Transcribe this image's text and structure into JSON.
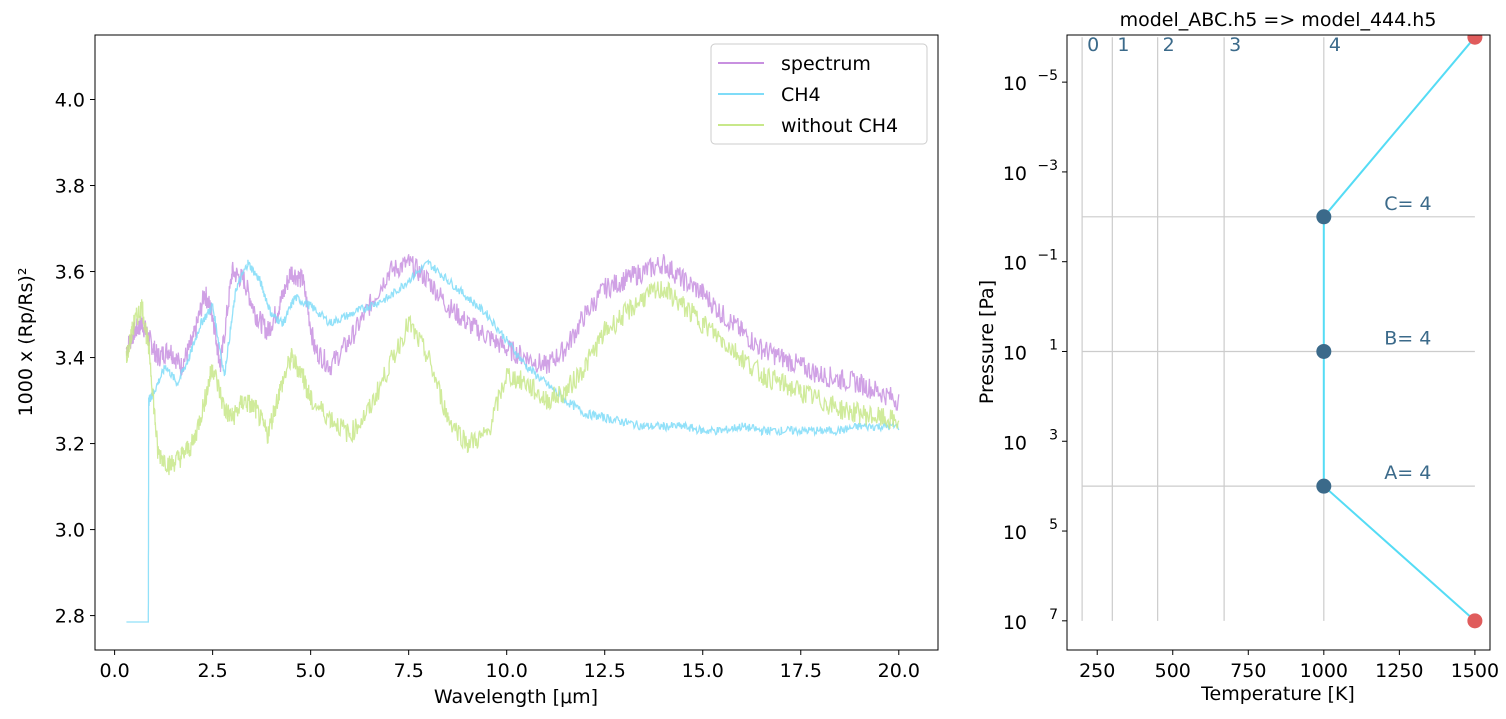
{
  "chart_data": [
    {
      "type": "line",
      "xlabel": "Wavelength [μm]",
      "ylabel": "1000 x (Rp/Rs)²",
      "xlim": [
        -0.5,
        21.0
      ],
      "ylim": [
        2.72,
        4.15
      ],
      "xticks": [
        0.0,
        2.5,
        5.0,
        7.5,
        10.0,
        12.5,
        15.0,
        17.5,
        20.0
      ],
      "xtick_labels": [
        "0.0",
        "2.5",
        "5.0",
        "7.5",
        "10.0",
        "12.5",
        "15.0",
        "17.5",
        "20.0"
      ],
      "yticks": [
        2.8,
        3.0,
        3.2,
        3.4,
        3.6,
        3.8,
        4.0
      ],
      "ytick_labels": [
        "2.8",
        "3.0",
        "3.2",
        "3.4",
        "3.6",
        "3.8",
        "4.0"
      ],
      "grid": false,
      "legend": "top-right",
      "series": [
        {
          "name": "spectrum",
          "color": "#c890e0",
          "x": [
            0.3,
            0.5,
            0.7,
            0.9,
            1.1,
            1.4,
            1.7,
            2.0,
            2.3,
            2.5,
            2.7,
            3.0,
            3.3,
            3.6,
            3.9,
            4.2,
            4.5,
            4.8,
            5.1,
            5.5,
            6.0,
            6.5,
            7.0,
            7.5,
            8.0,
            8.5,
            9.0,
            9.5,
            10.0,
            10.5,
            11.0,
            11.5,
            12.0,
            12.5,
            13.0,
            13.5,
            14.0,
            14.5,
            15.0,
            15.5,
            16.0,
            16.5,
            17.0,
            17.5,
            18.0,
            18.5,
            19.0,
            19.5,
            20.0
          ],
          "y": [
            3.42,
            3.46,
            3.48,
            3.44,
            3.4,
            3.42,
            3.38,
            3.44,
            3.55,
            3.5,
            3.38,
            3.6,
            3.58,
            3.5,
            3.46,
            3.52,
            3.6,
            3.58,
            3.42,
            3.38,
            3.44,
            3.52,
            3.6,
            3.62,
            3.58,
            3.52,
            3.48,
            3.45,
            3.42,
            3.4,
            3.38,
            3.42,
            3.5,
            3.56,
            3.58,
            3.6,
            3.62,
            3.58,
            3.55,
            3.5,
            3.46,
            3.42,
            3.4,
            3.38,
            3.36,
            3.35,
            3.34,
            3.32,
            3.3
          ]
        },
        {
          "name": "CH4",
          "color": "#7fdcf8",
          "x": [
            0.3,
            0.86,
            0.87,
            1.0,
            1.3,
            1.6,
            1.9,
            2.2,
            2.5,
            2.8,
            3.1,
            3.4,
            3.7,
            4.0,
            4.3,
            4.6,
            5.0,
            5.5,
            6.0,
            6.5,
            7.0,
            7.5,
            8.0,
            8.5,
            9.0,
            9.5,
            10.0,
            10.5,
            11.0,
            11.5,
            12.0,
            12.5,
            13.0,
            13.5,
            14.0,
            14.5,
            15.0,
            15.5,
            16.0,
            16.5,
            17.0,
            17.5,
            18.0,
            18.5,
            19.0,
            19.5,
            20.0
          ],
          "y": [
            2.785,
            2.785,
            3.3,
            3.32,
            3.38,
            3.34,
            3.4,
            3.48,
            3.52,
            3.36,
            3.56,
            3.62,
            3.58,
            3.5,
            3.48,
            3.54,
            3.52,
            3.48,
            3.5,
            3.52,
            3.54,
            3.58,
            3.62,
            3.58,
            3.54,
            3.5,
            3.44,
            3.38,
            3.34,
            3.3,
            3.27,
            3.26,
            3.25,
            3.24,
            3.24,
            3.24,
            3.23,
            3.23,
            3.24,
            3.23,
            3.23,
            3.23,
            3.23,
            3.23,
            3.24,
            3.24,
            3.24
          ]
        },
        {
          "name": "without CH4",
          "color": "#c8e88a",
          "x": [
            0.3,
            0.5,
            0.7,
            0.9,
            1.1,
            1.4,
            1.7,
            2.0,
            2.3,
            2.5,
            2.8,
            3.0,
            3.3,
            3.6,
            3.9,
            4.2,
            4.5,
            4.8,
            5.0,
            5.5,
            6.0,
            6.5,
            7.0,
            7.5,
            8.0,
            8.5,
            9.0,
            9.5,
            10.0,
            10.5,
            11.0,
            11.5,
            12.0,
            12.5,
            13.0,
            13.5,
            14.0,
            14.5,
            15.0,
            15.5,
            16.0,
            16.5,
            17.0,
            17.5,
            18.0,
            18.5,
            19.0,
            19.5,
            20.0
          ],
          "y": [
            3.4,
            3.48,
            3.52,
            3.4,
            3.18,
            3.15,
            3.17,
            3.2,
            3.3,
            3.38,
            3.28,
            3.26,
            3.3,
            3.28,
            3.22,
            3.32,
            3.4,
            3.36,
            3.3,
            3.26,
            3.22,
            3.28,
            3.38,
            3.48,
            3.4,
            3.26,
            3.2,
            3.22,
            3.36,
            3.34,
            3.3,
            3.32,
            3.38,
            3.46,
            3.5,
            3.54,
            3.56,
            3.52,
            3.48,
            3.44,
            3.4,
            3.36,
            3.34,
            3.32,
            3.3,
            3.28,
            3.27,
            3.26,
            3.25
          ]
        }
      ]
    },
    {
      "type": "line",
      "title": "model_ABC.h5 => model_444.h5",
      "xlabel": "Temperature [K]",
      "ylabel": "Pressure [Pa]",
      "xlim": [
        150,
        1550
      ],
      "ylim_exponent": [
        -6.05,
        7.65
      ],
      "y_log": true,
      "y_inverted": true,
      "xticks": [
        250,
        500,
        750,
        1000,
        1250,
        1500
      ],
      "xtick_labels": [
        "250",
        "500",
        "750",
        "1000",
        "1250",
        "1500"
      ],
      "ytick_exponents": [
        -5,
        -3,
        -1,
        1,
        3,
        5,
        7
      ],
      "ytick_base": "10",
      "ytick_powers": [
        "−5",
        "−3",
        "−1",
        "1",
        "3",
        "5",
        "7"
      ],
      "grid_color": "#cccccc",
      "vertical_lines": [
        {
          "x": 200,
          "label": "0"
        },
        {
          "x": 300,
          "label": "1"
        },
        {
          "x": 450,
          "label": "2"
        },
        {
          "x": 670,
          "label": "3"
        },
        {
          "x": 1000,
          "label": "4"
        }
      ],
      "vertical_line_top_exponent": -6,
      "vertical_line_bottom_exponent": 7,
      "horizontal_lines": [
        {
          "exponent": -2,
          "label": "C= 4"
        },
        {
          "exponent": 1,
          "label": "B= 4"
        },
        {
          "exponent": 4,
          "label": "A= 4"
        }
      ],
      "horizontal_line_x_range": [
        200,
        1500
      ],
      "profile_color": "#55dcf5",
      "profile": {
        "T": [
          1500,
          1000,
          1000,
          1000,
          1500
        ],
        "P_exponent": [
          -6,
          -2,
          1,
          4,
          7
        ]
      },
      "control_points": {
        "color": "#3b6a8a",
        "T": [
          1000,
          1000,
          1000
        ],
        "P_exponent": [
          -2,
          1,
          4
        ]
      },
      "end_points": {
        "color": "#e05c5c",
        "T": [
          1500,
          1500
        ],
        "P_exponent": [
          -6,
          7
        ]
      },
      "annotation_color": "#3b6a8a"
    }
  ]
}
